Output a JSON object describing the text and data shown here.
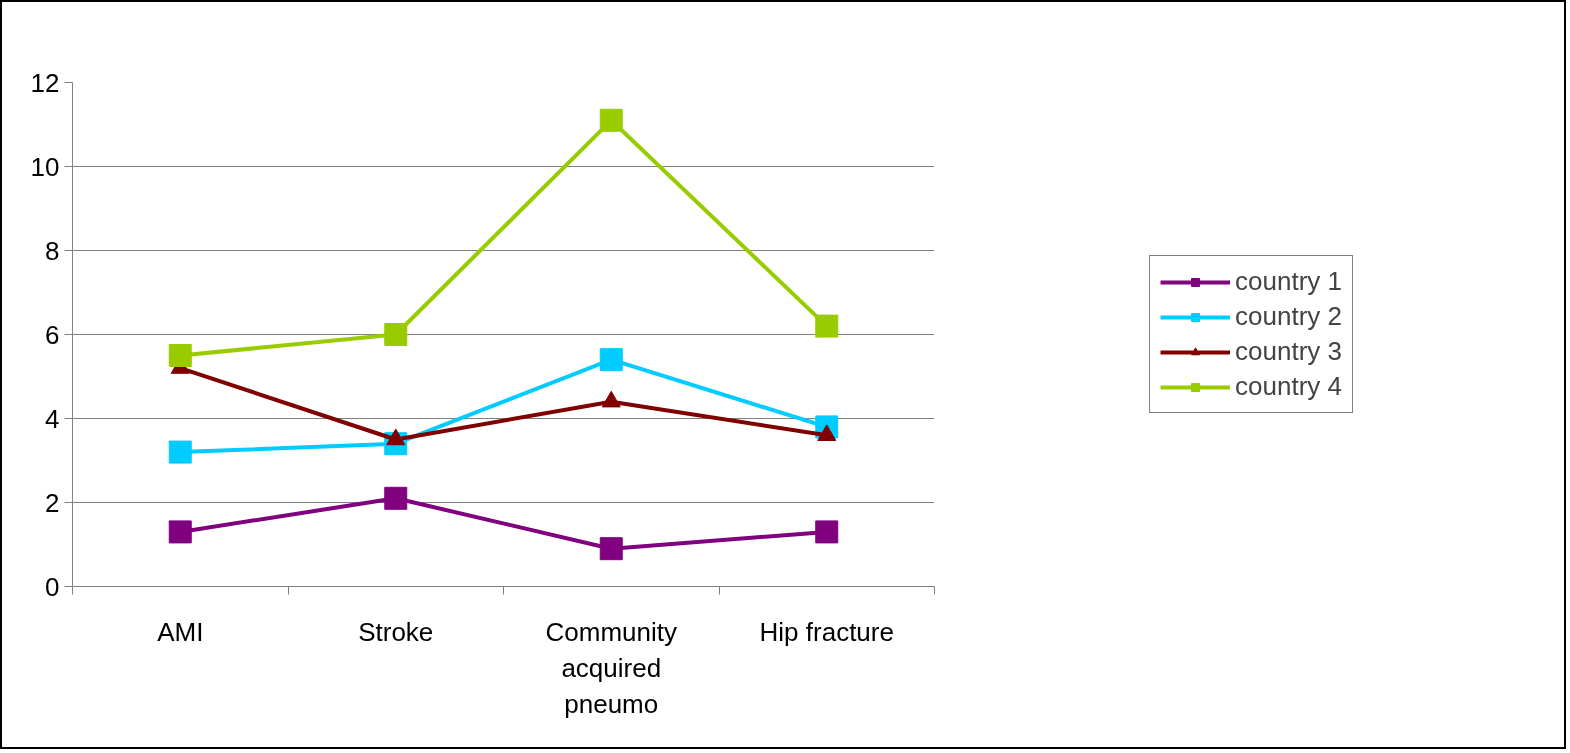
{
  "chart_data": {
    "type": "line",
    "categories": [
      "AMI",
      "Stroke",
      "Community acquired pneumo",
      "Hip fracture"
    ],
    "series": [
      {
        "name": "country 1",
        "color": "#800080",
        "marker": "square",
        "values": [
          1.3,
          2.1,
          0.9,
          1.3
        ]
      },
      {
        "name": "country 2",
        "color": "#00ccff",
        "marker": "square",
        "values": [
          3.2,
          3.4,
          5.4,
          3.8
        ]
      },
      {
        "name": "country 3",
        "color": "#800000",
        "marker": "triangle",
        "values": [
          5.2,
          3.5,
          4.4,
          3.6
        ]
      },
      {
        "name": "country 4",
        "color": "#99cc00",
        "marker": "square",
        "values": [
          5.5,
          6.0,
          11.1,
          6.2
        ]
      }
    ],
    "ylim": [
      0,
      12
    ],
    "yticks": [
      0,
      2,
      4,
      6,
      8,
      10,
      12
    ],
    "grid": "y",
    "legend": "right",
    "line_style": "solid"
  }
}
